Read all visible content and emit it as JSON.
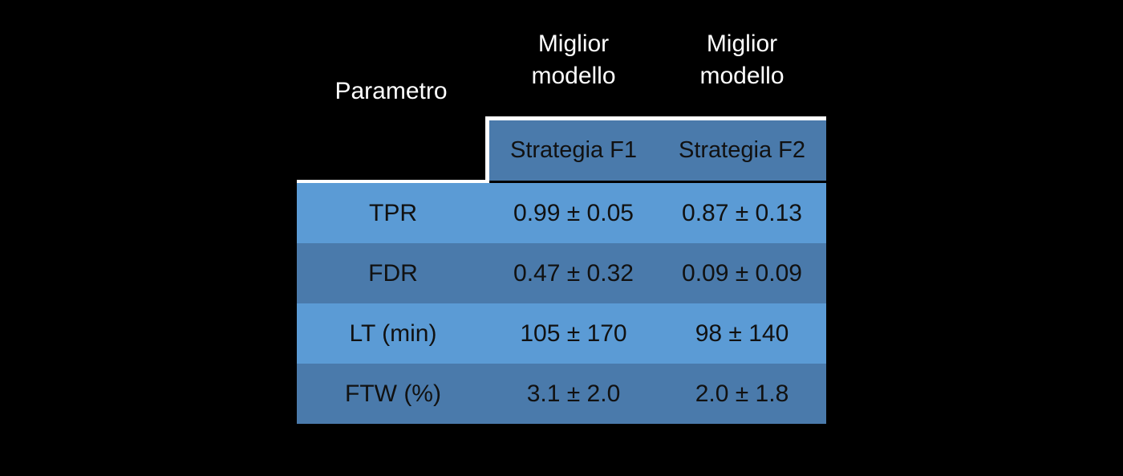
{
  "chart_data": {
    "type": "table",
    "header": {
      "parameter": "Parametro",
      "groups": [
        "Miglior modello",
        "Miglior modello"
      ],
      "strategies": [
        "Strategia F1",
        "Strategia F2"
      ]
    },
    "rows": [
      {
        "param": "TPR",
        "f1": "0.99 ± 0.05",
        "f2": "0.87 ± 0.13"
      },
      {
        "param": "FDR",
        "f1": "0.47 ± 0.32",
        "f2": "0.09 ± 0.09"
      },
      {
        "param": "LT (min)",
        "f1": "105 ± 170",
        "f2": "98 ± 140"
      },
      {
        "param": "FTW (%)",
        "f1": "3.1 ± 2.0",
        "f2": "2.0 ± 1.8"
      }
    ],
    "colors": {
      "background": "#000000",
      "header_band": "#4a7aab",
      "row_light": "#5b9bd5",
      "row_dark": "#4a7aab",
      "text_dark": "#111111",
      "text_light": "#ffffff",
      "divider": "#ffffff"
    }
  }
}
